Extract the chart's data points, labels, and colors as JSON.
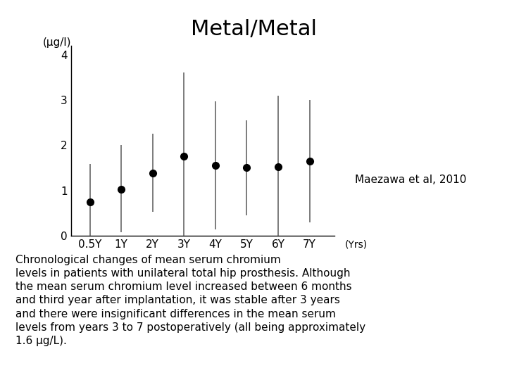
{
  "title": "Metal/Metal",
  "ylabel_unit": "(μg/l)",
  "xlabel_unit": "(Yrs)",
  "x_labels": [
    "0.5Y",
    "1Y",
    "2Y",
    "3Y",
    "4Y",
    "5Y",
    "6Y",
    "7Y"
  ],
  "x_values": [
    1,
    2,
    3,
    4,
    5,
    6,
    7,
    8
  ],
  "y_values": [
    0.75,
    1.03,
    1.38,
    1.75,
    1.55,
    1.5,
    1.52,
    1.65
  ],
  "err_up": [
    0.83,
    0.97,
    0.87,
    1.85,
    1.42,
    1.05,
    1.58,
    1.35
  ],
  "err_lo": [
    0.75,
    0.96,
    0.86,
    1.75,
    1.42,
    1.05,
    1.52,
    1.35
  ],
  "ylim": [
    0,
    4.2
  ],
  "yticks": [
    0,
    1,
    2,
    3,
    4
  ],
  "annotation": "Maezawa et al, 2010",
  "caption": "Chronological changes of mean serum chromium\nlevels in patients with unilateral total hip prosthesis. Although\nthe mean serum chromium level increased between 6 months\nand third year after implantation, it was stable after 3 years\nand there were insignificant differences in the mean serum\nlevels from years 3 to 7 postoperatively (all being approximately\n1.6 μg/L).",
  "background_color": "#ffffff",
  "line_color": "#000000",
  "marker_color": "#000000",
  "error_color": "#666666",
  "title_fontsize": 22,
  "tick_fontsize": 11,
  "caption_fontsize": 11,
  "annotation_fontsize": 11
}
